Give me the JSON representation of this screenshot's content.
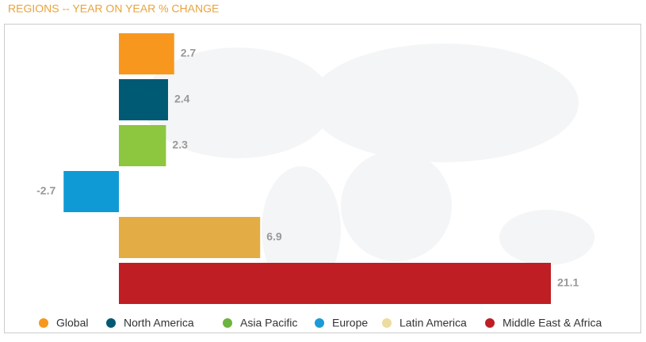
{
  "chart_data": {
    "type": "bar",
    "orientation": "horizontal",
    "title": "REGIONS -- YEAR ON YEAR % CHANGE",
    "categories": [
      "Global",
      "North America",
      "Asia Pacific",
      "Europe",
      "Latin America",
      "Middle East & Africa"
    ],
    "values": [
      2.7,
      2.4,
      2.3,
      -2.7,
      6.9,
      21.1
    ],
    "colors": [
      "#f7971e",
      "#005a73",
      "#8dc63f",
      "#0f9ad6",
      "#e3ac45",
      "#be1e24"
    ],
    "legend_colors": [
      "#f7971e",
      "#005a73",
      "#6db33f",
      "#1a9bd7",
      "#ecdca0",
      "#be1e24"
    ]
  }
}
